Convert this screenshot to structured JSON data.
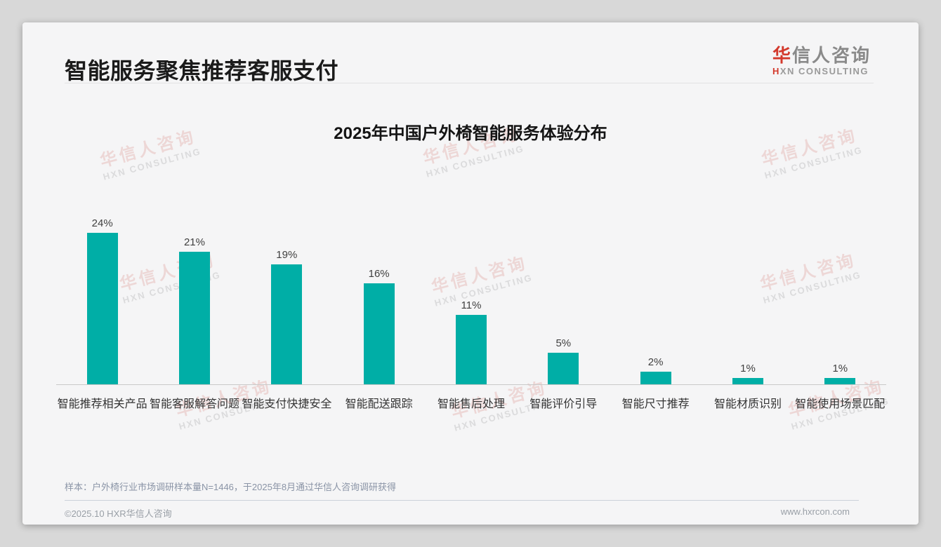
{
  "header": {
    "title": "智能服务聚焦推荐客服支付"
  },
  "logo": {
    "cn_accent": "华",
    "cn_rest": "信人咨询",
    "en_accent": "H",
    "en_rest": "XN CONSULTING"
  },
  "chart_data": {
    "type": "bar",
    "title": "2025年中国户外椅智能服务体验分布",
    "categories": [
      "智能推荐相关产品",
      "智能客服解答问题",
      "智能支付快捷安全",
      "智能配送跟踪",
      "智能售后处理",
      "智能评价引导",
      "智能尺寸推荐",
      "智能材质识别",
      "智能使用场景匹配"
    ],
    "values": [
      24,
      21,
      19,
      16,
      11,
      5,
      2,
      1,
      1
    ],
    "value_labels": [
      "24%",
      "21%",
      "19%",
      "16%",
      "11%",
      "5%",
      "2%",
      "1%",
      "1%"
    ],
    "unit": "%",
    "ylim": [
      0,
      26
    ],
    "bar_color": "#00aea6",
    "grid": false,
    "legend": "none"
  },
  "watermark": {
    "line1": "华信人咨询",
    "line2": "HXN CONSULTING"
  },
  "footnote": "样本：户外椅行业市场调研样本量N=1446，于2025年8月通过华信人咨询调研获得",
  "footer": {
    "left": "©2025.10 HXR华信人咨询",
    "right": "www.hxrcon.com"
  },
  "colors": {
    "bar": "#00aea6",
    "accent_red": "#d3392c",
    "page_bg": "#d8d8d8",
    "card_bg": "#f5f5f6"
  }
}
